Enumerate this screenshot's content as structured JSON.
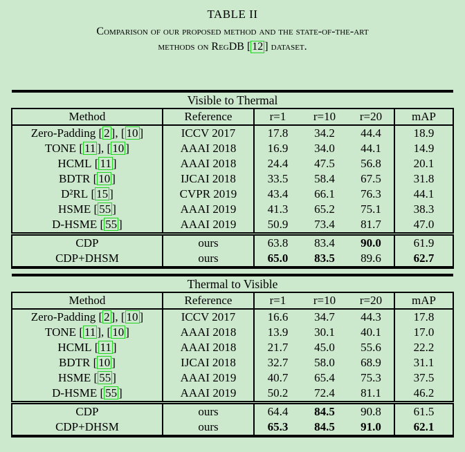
{
  "colors": {
    "background": "#cce8cd",
    "text": "#000000",
    "citation_border": "#21d421",
    "rule": "#000000"
  },
  "title": "TABLE II",
  "caption": {
    "line1": "Comparison of our proposed method and the state-of-the-art",
    "line2_pre": "methods on RegDB [",
    "line2_cite": "12",
    "line2_post": "] dataset."
  },
  "columns": {
    "method": "Method",
    "reference": "Reference",
    "r1": "r=1",
    "r10": "r=10",
    "r20": "r=20",
    "map": "mAP"
  },
  "tables": [
    {
      "title": "Visible to Thermal",
      "sota_rows": [
        {
          "method": "Zero-Padding",
          "cites": [
            "2",
            "10"
          ],
          "reference": "ICCV 2017",
          "values": {
            "r1": "17.8",
            "r10": "34.2",
            "r20": "44.4",
            "map": "18.9"
          },
          "bold": []
        },
        {
          "method": "TONE",
          "cites": [
            "11",
            "10"
          ],
          "reference": "AAAI 2018",
          "values": {
            "r1": "16.9",
            "r10": "34.0",
            "r20": "44.1",
            "map": "14.9"
          },
          "bold": []
        },
        {
          "method": "HCML",
          "cites": [
            "11"
          ],
          "reference": "AAAI 2018",
          "values": {
            "r1": "24.4",
            "r10": "47.5",
            "r20": "56.8",
            "map": "20.1"
          },
          "bold": []
        },
        {
          "method": "BDTR",
          "cites": [
            "10"
          ],
          "reference": "IJCAI 2018",
          "values": {
            "r1": "33.5",
            "r10": "58.4",
            "r20": "67.5",
            "map": "31.8"
          },
          "bold": []
        },
        {
          "method": "D²RL",
          "cites": [
            "15"
          ],
          "reference": "CVPR 2019",
          "values": {
            "r1": "43.4",
            "r10": "66.1",
            "r20": "76.3",
            "map": "44.1"
          },
          "bold": []
        },
        {
          "method": "HSME",
          "cites": [
            "55"
          ],
          "reference": "AAAI 2019",
          "values": {
            "r1": "41.3",
            "r10": "65.2",
            "r20": "75.1",
            "map": "38.3"
          },
          "bold": []
        },
        {
          "method": "D-HSME",
          "cites": [
            "55"
          ],
          "reference": "AAAI 2019",
          "values": {
            "r1": "50.9",
            "r10": "73.4",
            "r20": "81.7",
            "map": "47.0"
          },
          "bold": []
        }
      ],
      "ours_rows": [
        {
          "method": "CDP",
          "cites": [],
          "reference": "ours",
          "values": {
            "r1": "63.8",
            "r10": "83.4",
            "r20": "90.0",
            "map": "61.9"
          },
          "bold": [
            "r20"
          ]
        },
        {
          "method": "CDP+DHSM",
          "cites": [],
          "reference": "ours",
          "values": {
            "r1": "65.0",
            "r10": "83.5",
            "r20": "89.6",
            "map": "62.7"
          },
          "bold": [
            "r1",
            "r10",
            "map"
          ]
        }
      ]
    },
    {
      "title": "Thermal to Visible",
      "sota_rows": [
        {
          "method": "Zero-Padding",
          "cites": [
            "2",
            "10"
          ],
          "reference": "ICCV 2017",
          "values": {
            "r1": "16.6",
            "r10": "34.7",
            "r20": "44.3",
            "map": "17.8"
          },
          "bold": []
        },
        {
          "method": "TONE",
          "cites": [
            "11",
            "10"
          ],
          "reference": "AAAI 2018",
          "values": {
            "r1": "13.9",
            "r10": "30.1",
            "r20": "40.1",
            "map": "17.0"
          },
          "bold": []
        },
        {
          "method": "HCML",
          "cites": [
            "11"
          ],
          "reference": "AAAI 2018",
          "values": {
            "r1": "21.7",
            "r10": "45.0",
            "r20": "55.6",
            "map": "22.2"
          },
          "bold": []
        },
        {
          "method": "BDTR",
          "cites": [
            "10"
          ],
          "reference": "IJCAI 2018",
          "values": {
            "r1": "32.7",
            "r10": "58.0",
            "r20": "68.9",
            "map": "31.1"
          },
          "bold": []
        },
        {
          "method": "HSME",
          "cites": [
            "55"
          ],
          "reference": "AAAI 2019",
          "values": {
            "r1": "40.7",
            "r10": "65.4",
            "r20": "75.3",
            "map": "37.5"
          },
          "bold": []
        },
        {
          "method": "D-HSME",
          "cites": [
            "55"
          ],
          "reference": "AAAI 2019",
          "values": {
            "r1": "50.2",
            "r10": "72.4",
            "r20": "81.1",
            "map": "46.2"
          },
          "bold": []
        }
      ],
      "ours_rows": [
        {
          "method": "CDP",
          "cites": [],
          "reference": "ours",
          "values": {
            "r1": "64.4",
            "r10": "84.5",
            "r20": "90.8",
            "map": "61.5"
          },
          "bold": [
            "r10"
          ]
        },
        {
          "method": "CDP+DHSM",
          "cites": [],
          "reference": "ours",
          "values": {
            "r1": "65.3",
            "r10": "84.5",
            "r20": "91.0",
            "map": "62.1"
          },
          "bold": [
            "r1",
            "r10",
            "r20",
            "map"
          ]
        }
      ]
    }
  ]
}
